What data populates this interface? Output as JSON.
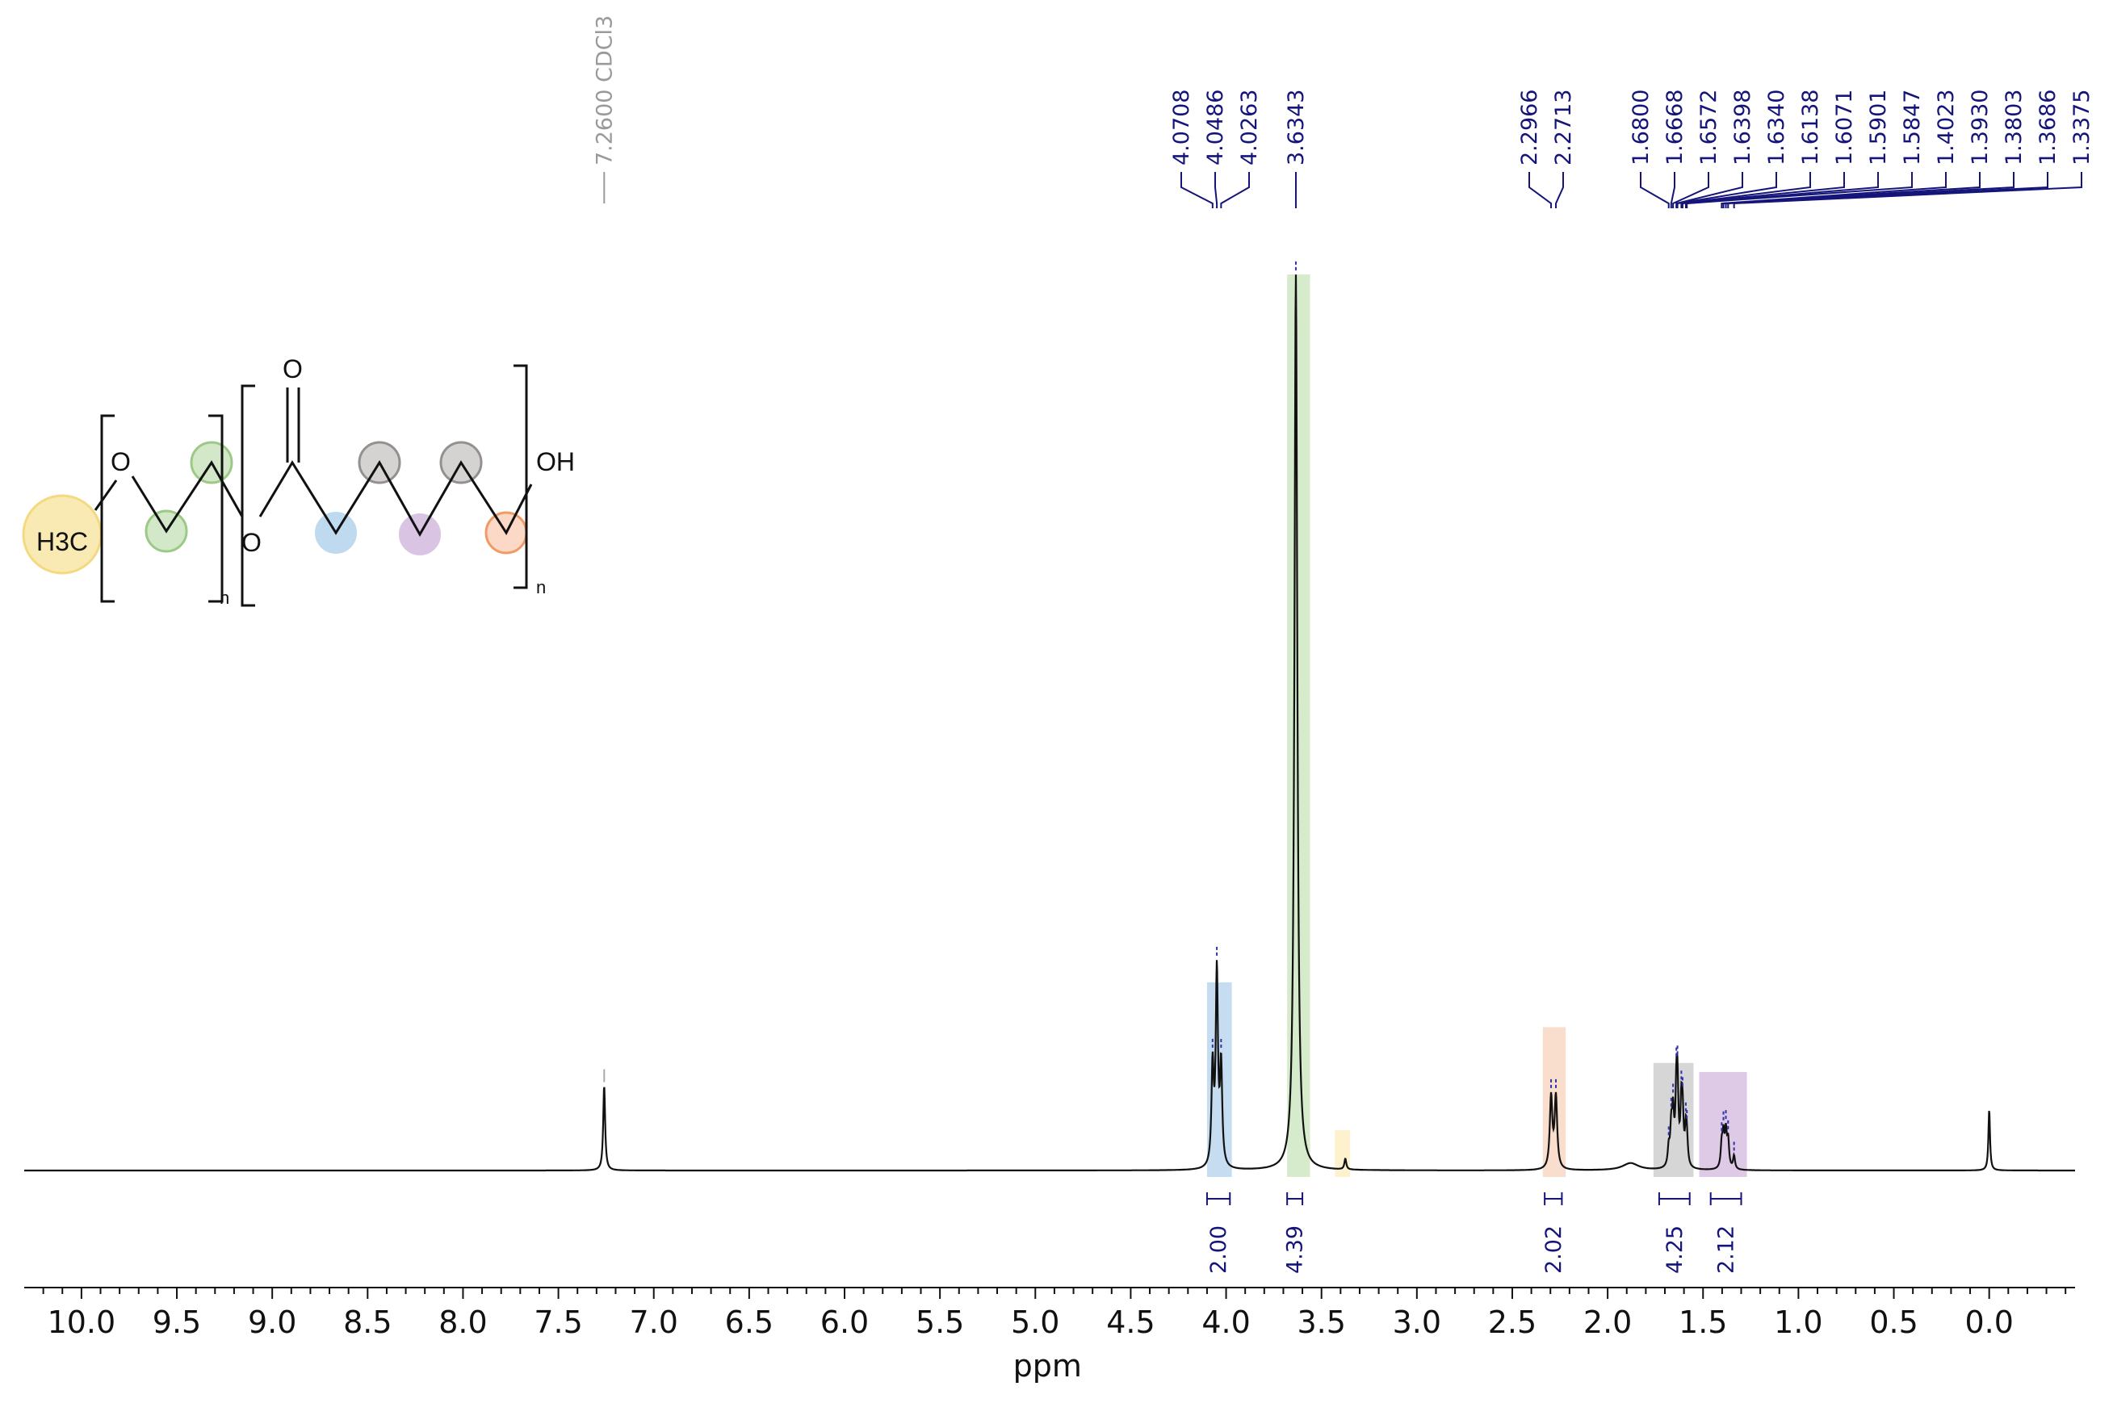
{
  "chart_data": {
    "type": "nmr-1h-spectrum",
    "title": "",
    "xlabel": "ppm",
    "xlim": [
      10.3,
      -0.45
    ],
    "x_reversed": true,
    "x_ticks": [
      "10.0",
      "9.5",
      "9.0",
      "8.5",
      "8.0",
      "7.5",
      "7.0",
      "6.5",
      "6.0",
      "5.5",
      "5.0",
      "4.5",
      "4.0",
      "3.5",
      "3.0",
      "2.5",
      "2.0",
      "1.5",
      "1.0",
      "0.5",
      "0.0"
    ],
    "solvent_peak": {
      "ppm": 7.26,
      "label": "7.2600 CDCl3",
      "rel_height": 0.095
    },
    "peak_labels": [
      {
        "ppm": 4.0708,
        "label": "4.0708"
      },
      {
        "ppm": 4.0486,
        "label": "4.0486"
      },
      {
        "ppm": 4.0263,
        "label": "4.0263"
      },
      {
        "ppm": 3.6343,
        "label": "3.6343"
      },
      {
        "ppm": 2.2966,
        "label": "2.2966"
      },
      {
        "ppm": 2.2713,
        "label": "2.2713"
      },
      {
        "ppm": 1.68,
        "label": "1.6800"
      },
      {
        "ppm": 1.6668,
        "label": "1.6668"
      },
      {
        "ppm": 1.6572,
        "label": "1.6572"
      },
      {
        "ppm": 1.6398,
        "label": "1.6398"
      },
      {
        "ppm": 1.634,
        "label": "1.6340"
      },
      {
        "ppm": 1.6138,
        "label": "1.6138"
      },
      {
        "ppm": 1.6071,
        "label": "1.6071"
      },
      {
        "ppm": 1.5901,
        "label": "1.5901"
      },
      {
        "ppm": 1.5847,
        "label": "1.5847"
      },
      {
        "ppm": 1.4023,
        "label": "1.4023"
      },
      {
        "ppm": 1.393,
        "label": "1.3930"
      },
      {
        "ppm": 1.3803,
        "label": "1.3803"
      },
      {
        "ppm": 1.3686,
        "label": "1.3686"
      },
      {
        "ppm": 1.3375,
        "label": "1.3375"
      }
    ],
    "peaks": [
      {
        "ppm": 7.26,
        "height": 0.095,
        "width": 0.006
      },
      {
        "ppm": 4.0708,
        "height": 0.11,
        "width": 0.007
      },
      {
        "ppm": 4.0486,
        "height": 0.215,
        "width": 0.007
      },
      {
        "ppm": 4.0263,
        "height": 0.11,
        "width": 0.007
      },
      {
        "ppm": 3.6343,
        "height": 1.0,
        "width": 0.009
      },
      {
        "ppm": 3.375,
        "height": 0.012,
        "width": 0.006
      },
      {
        "ppm": 2.2966,
        "height": 0.08,
        "width": 0.008
      },
      {
        "ppm": 2.2713,
        "height": 0.08,
        "width": 0.008
      },
      {
        "ppm": 1.88,
        "height": 0.008,
        "width": 0.05
      },
      {
        "ppm": 1.68,
        "height": 0.02,
        "width": 0.006
      },
      {
        "ppm": 1.6668,
        "height": 0.04,
        "width": 0.006
      },
      {
        "ppm": 1.6572,
        "height": 0.055,
        "width": 0.006
      },
      {
        "ppm": 1.6398,
        "height": 0.07,
        "width": 0.006
      },
      {
        "ppm": 1.634,
        "height": 0.075,
        "width": 0.006
      },
      {
        "ppm": 1.6138,
        "height": 0.06,
        "width": 0.006
      },
      {
        "ppm": 1.6071,
        "height": 0.05,
        "width": 0.006
      },
      {
        "ppm": 1.5901,
        "height": 0.035,
        "width": 0.006
      },
      {
        "ppm": 1.5847,
        "height": 0.025,
        "width": 0.006
      },
      {
        "ppm": 1.4023,
        "height": 0.025,
        "width": 0.006
      },
      {
        "ppm": 1.393,
        "height": 0.035,
        "width": 0.006
      },
      {
        "ppm": 1.3803,
        "height": 0.038,
        "width": 0.006
      },
      {
        "ppm": 1.3686,
        "height": 0.03,
        "width": 0.006
      },
      {
        "ppm": 1.3375,
        "height": 0.015,
        "width": 0.006
      },
      {
        "ppm": 0.0,
        "height": 0.068,
        "width": 0.005
      }
    ],
    "highlight_regions": [
      {
        "from": 4.1,
        "to": 3.97,
        "color": "#bcd7ef",
        "height": 0.21,
        "group": "blue"
      },
      {
        "from": 3.68,
        "to": 3.56,
        "color": "#cfe6c3",
        "height": 1.0,
        "group": "green"
      },
      {
        "from": 3.43,
        "to": 3.35,
        "color": "#fdf0c4",
        "height": 0.045,
        "group": "yellow"
      },
      {
        "from": 2.34,
        "to": 2.22,
        "color": "#f9d8c4",
        "height": 0.16,
        "group": "orange"
      },
      {
        "from": 1.76,
        "to": 1.55,
        "color": "#cfcfcf",
        "height": 0.12,
        "group": "gray"
      },
      {
        "from": 1.52,
        "to": 1.27,
        "color": "#d8c1e2",
        "height": 0.11,
        "group": "purple"
      }
    ],
    "integrals": [
      {
        "from": 4.1,
        "to": 3.98,
        "center": 4.04,
        "value": "2.00"
      },
      {
        "from": 3.68,
        "to": 3.6,
        "center": 3.64,
        "value": "4.39"
      },
      {
        "from": 2.33,
        "to": 2.24,
        "center": 2.285,
        "value": "2.02"
      },
      {
        "from": 1.73,
        "to": 1.57,
        "center": 1.65,
        "value": "4.25"
      },
      {
        "from": 1.46,
        "to": 1.3,
        "center": 1.38,
        "value": "2.12"
      }
    ]
  },
  "structure": {
    "atoms": {
      "methyl": "H3C",
      "ether_o": "O",
      "ester_o": "O",
      "carbonyl_o": "O",
      "hydroxyl": "OH"
    },
    "repeat_subscripts": [
      "n",
      "n"
    ]
  },
  "colors": {
    "spectrum_line": "#111111",
    "peak_label": "#14147a",
    "solvent_label": "#9a9a9a",
    "axis": "#111111",
    "yellow": "#f6e08a",
    "green": "#b6d9a4",
    "blue": "#a9cdec",
    "purple": "#c6a5d6",
    "gray": "#b9b5b5",
    "orange": "#f2a070"
  }
}
